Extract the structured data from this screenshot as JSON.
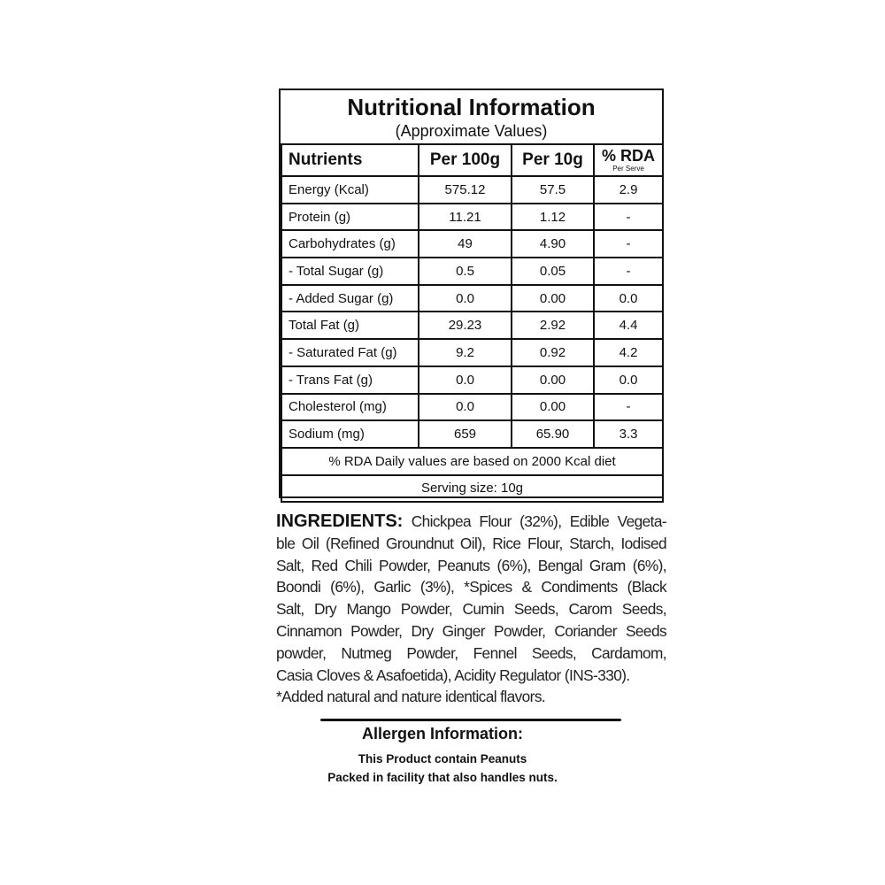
{
  "table": {
    "title": "Nutritional Information",
    "subtitle": "(Approximate Values)",
    "headers": [
      "Nutrients",
      "Per 100g",
      "Per 10g",
      "% RDA",
      "Per Serve"
    ],
    "rows": [
      [
        "Energy (Kcal)",
        "575.12",
        "57.5",
        "2.9"
      ],
      [
        "Protein (g)",
        "11.21",
        "1.12",
        "-"
      ],
      [
        "Carbohydrates (g)",
        "49",
        "4.90",
        "-"
      ],
      [
        "- Total Sugar (g)",
        "0.5",
        "0.05",
        "-"
      ],
      [
        "- Added Sugar (g)",
        "0.0",
        "0.00",
        "0.0"
      ],
      [
        "Total Fat (g)",
        "29.23",
        "2.92",
        "4.4"
      ],
      [
        "- Saturated Fat (g)",
        "9.2",
        "0.92",
        "4.2"
      ],
      [
        "- Trans Fat (g)",
        "0.0",
        "0.00",
        "0.0"
      ],
      [
        "Cholesterol (mg)",
        "0.0",
        "0.00",
        "-"
      ],
      [
        "Sodium (mg)",
        "659",
        "65.90",
        "3.3"
      ]
    ],
    "footnote": "% RDA Daily values are based on 2000 Kcal diet",
    "serving": "Serving size: 10g"
  },
  "ingredients": {
    "label": "INGREDIENTS:",
    "lines": [
      " Chickpea Flour (32%), Edible Vegeta-",
      "ble Oil (Refined Groundnut Oil), Rice Flour, Starch, Iodised",
      "Salt, Red Chili Powder, Peanuts (6%), Bengal Gram (6%),",
      "Boondi (6%), Garlic (3%), *Spices & Condiments (Black",
      "Salt, Dry Mango Powder, Cumin Seeds, Carom Seeds,",
      "Cinnamon Powder, Dry Ginger Powder, Coriander Seeds",
      "powder, Nutmeg Powder, Fennel Seeds, Cardamom,",
      "Casia Cloves & Asafoetida), Acidity Regulator (INS-330).",
      "*Added natural and nature identical flavors."
    ]
  },
  "allergen": {
    "title": "Allergen Information:",
    "line1": "This Product contain Peanuts",
    "line2": "Packed in facility that also handles nuts."
  }
}
